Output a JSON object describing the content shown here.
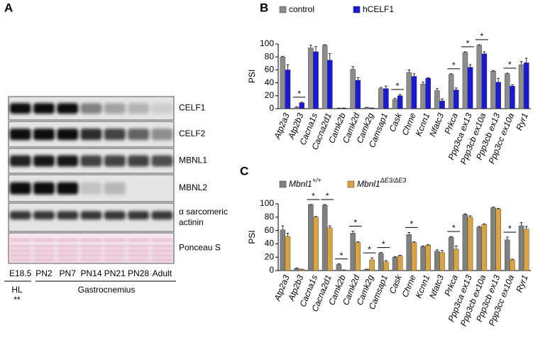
{
  "panel_a": {
    "letter": "A",
    "rows": [
      [
        "CELF1"
      ],
      [
        "CELF2"
      ],
      [
        "MBNL1"
      ],
      [
        "MBNL2"
      ],
      [
        "α sarcomeric",
        "actinin"
      ],
      [
        "Ponceau S"
      ]
    ],
    "lanes": [
      "E18.5",
      "PN2",
      "PN7",
      "PN14",
      "PN21",
      "PN28",
      "Adult"
    ],
    "groups": [
      {
        "label": "HL",
        "note": "**"
      },
      {
        "label": "Gastrocnemius"
      }
    ]
  },
  "chart_data": [
    {
      "type": "bar",
      "panel_label": "B",
      "ylabel": "PSI",
      "categories": [
        "Atp2a3",
        "Atp2b3",
        "Cacna1s",
        "Cacna2d1",
        "Camk2b",
        "Camk2d",
        "Camk2g",
        "Camsap1",
        "Cask",
        "Chrne",
        "Kcnn1",
        "Nfatc3",
        "Prkca",
        "Ppp3ca ex13",
        "Ppp3cb ex10a",
        "Ppp3cb ex13",
        "Ppp3cc ex10a",
        "Ryr1"
      ],
      "series": [
        {
          "name": "control",
          "color": "#8c8c8c",
          "values": [
            80,
            2,
            94,
            98,
            1,
            61,
            2,
            31,
            14,
            56,
            38,
            28,
            53,
            87,
            98,
            58,
            54,
            68
          ],
          "errors": [
            1,
            1,
            4,
            1,
            0,
            4,
            0,
            2,
            2,
            4,
            3,
            3,
            1,
            1,
            1,
            1,
            1,
            5
          ]
        },
        {
          "name": "hCELF1",
          "color": "#1a1ad6",
          "values": [
            60,
            9,
            88,
            75,
            1,
            44,
            1,
            31,
            20,
            50,
            47,
            12,
            29,
            64,
            85,
            41,
            35,
            71
          ],
          "errors": [
            8,
            1,
            8,
            10,
            0,
            4,
            0,
            4,
            2,
            4,
            1,
            3,
            3,
            4,
            3,
            6,
            2,
            7
          ]
        }
      ],
      "significance": [
        null,
        "*",
        null,
        null,
        null,
        null,
        null,
        null,
        "*",
        null,
        null,
        null,
        "*",
        "*",
        "*",
        null,
        "*",
        null
      ],
      "ylim": [
        0,
        100
      ],
      "yticks": [
        0,
        20,
        40,
        60,
        80,
        100
      ]
    },
    {
      "type": "bar",
      "panel_label": "C",
      "ylabel": "PSI",
      "categories": [
        "Atp2a3",
        "Atp2b3",
        "Cacna1s",
        "Cacna2d1",
        "Camk2b",
        "Camk2d",
        "Camk2g",
        "Camsap1",
        "Cask",
        "Chrne",
        "Kcnn1",
        "Nfatc3",
        "Prkca",
        "Ppp3ca ex13",
        "Ppp3cb ex10a",
        "Ppp3cb ex13",
        "Ppp3cc ex10a",
        "Ryr1"
      ],
      "series": [
        {
          "name": "Mbnl1",
          "superscript": "+/+",
          "color": "#808080",
          "values": [
            61,
            3,
            99,
            98,
            9,
            56,
            2,
            26,
            20,
            54,
            36,
            29,
            50,
            84,
            65,
            94,
            46,
            67
          ],
          "errors": [
            6,
            1,
            0,
            1,
            1,
            3,
            0,
            1,
            1,
            3,
            1,
            2,
            1,
            1,
            1,
            1,
            4,
            5
          ]
        },
        {
          "name": "Mbnl1",
          "superscript": "ΔE3/ΔE3",
          "color": "#d9a441",
          "values": [
            51,
            2,
            80,
            64,
            1,
            42,
            16,
            13,
            22,
            42,
            38,
            27,
            32,
            80,
            69,
            92,
            16,
            62
          ],
          "errors": [
            5,
            0,
            1,
            3,
            0,
            1,
            3,
            2,
            1,
            1,
            1,
            3,
            5,
            2,
            1,
            1,
            1,
            4
          ]
        }
      ],
      "significance": [
        null,
        null,
        "*",
        "*",
        "*",
        "*",
        "*",
        "*",
        null,
        "*",
        null,
        null,
        "*",
        null,
        null,
        null,
        "*",
        null
      ],
      "ylim": [
        0,
        100
      ],
      "yticks": [
        0,
        20,
        40,
        60,
        80,
        100
      ]
    }
  ]
}
